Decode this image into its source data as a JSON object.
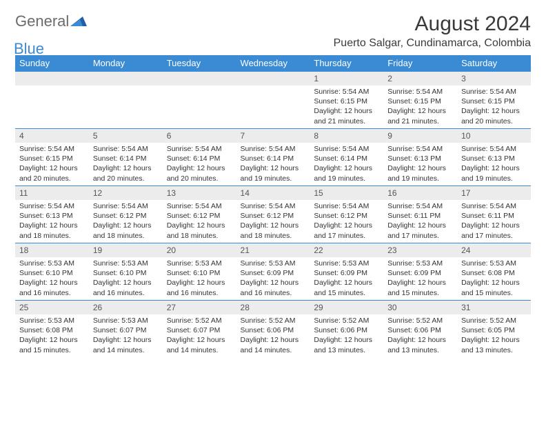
{
  "brand": {
    "text1": "General",
    "text2": "Blue"
  },
  "title": "August 2024",
  "location": "Puerto Salgar, Cundinamarca, Colombia",
  "colors": {
    "header_bg": "#3b8bd4",
    "header_fg": "#ffffff",
    "daynum_bg": "#ececec",
    "rule": "#3b8bd4",
    "text": "#333333"
  },
  "dayNames": [
    "Sunday",
    "Monday",
    "Tuesday",
    "Wednesday",
    "Thursday",
    "Friday",
    "Saturday"
  ],
  "weeks": [
    [
      null,
      null,
      null,
      null,
      {
        "n": "1",
        "sr": "5:54 AM",
        "ss": "6:15 PM",
        "dl": "12 hours and 21 minutes."
      },
      {
        "n": "2",
        "sr": "5:54 AM",
        "ss": "6:15 PM",
        "dl": "12 hours and 21 minutes."
      },
      {
        "n": "3",
        "sr": "5:54 AM",
        "ss": "6:15 PM",
        "dl": "12 hours and 20 minutes."
      }
    ],
    [
      {
        "n": "4",
        "sr": "5:54 AM",
        "ss": "6:15 PM",
        "dl": "12 hours and 20 minutes."
      },
      {
        "n": "5",
        "sr": "5:54 AM",
        "ss": "6:14 PM",
        "dl": "12 hours and 20 minutes."
      },
      {
        "n": "6",
        "sr": "5:54 AM",
        "ss": "6:14 PM",
        "dl": "12 hours and 20 minutes."
      },
      {
        "n": "7",
        "sr": "5:54 AM",
        "ss": "6:14 PM",
        "dl": "12 hours and 19 minutes."
      },
      {
        "n": "8",
        "sr": "5:54 AM",
        "ss": "6:14 PM",
        "dl": "12 hours and 19 minutes."
      },
      {
        "n": "9",
        "sr": "5:54 AM",
        "ss": "6:13 PM",
        "dl": "12 hours and 19 minutes."
      },
      {
        "n": "10",
        "sr": "5:54 AM",
        "ss": "6:13 PM",
        "dl": "12 hours and 19 minutes."
      }
    ],
    [
      {
        "n": "11",
        "sr": "5:54 AM",
        "ss": "6:13 PM",
        "dl": "12 hours and 18 minutes."
      },
      {
        "n": "12",
        "sr": "5:54 AM",
        "ss": "6:12 PM",
        "dl": "12 hours and 18 minutes."
      },
      {
        "n": "13",
        "sr": "5:54 AM",
        "ss": "6:12 PM",
        "dl": "12 hours and 18 minutes."
      },
      {
        "n": "14",
        "sr": "5:54 AM",
        "ss": "6:12 PM",
        "dl": "12 hours and 18 minutes."
      },
      {
        "n": "15",
        "sr": "5:54 AM",
        "ss": "6:12 PM",
        "dl": "12 hours and 17 minutes."
      },
      {
        "n": "16",
        "sr": "5:54 AM",
        "ss": "6:11 PM",
        "dl": "12 hours and 17 minutes."
      },
      {
        "n": "17",
        "sr": "5:54 AM",
        "ss": "6:11 PM",
        "dl": "12 hours and 17 minutes."
      }
    ],
    [
      {
        "n": "18",
        "sr": "5:53 AM",
        "ss": "6:10 PM",
        "dl": "12 hours and 16 minutes."
      },
      {
        "n": "19",
        "sr": "5:53 AM",
        "ss": "6:10 PM",
        "dl": "12 hours and 16 minutes."
      },
      {
        "n": "20",
        "sr": "5:53 AM",
        "ss": "6:10 PM",
        "dl": "12 hours and 16 minutes."
      },
      {
        "n": "21",
        "sr": "5:53 AM",
        "ss": "6:09 PM",
        "dl": "12 hours and 16 minutes."
      },
      {
        "n": "22",
        "sr": "5:53 AM",
        "ss": "6:09 PM",
        "dl": "12 hours and 15 minutes."
      },
      {
        "n": "23",
        "sr": "5:53 AM",
        "ss": "6:09 PM",
        "dl": "12 hours and 15 minutes."
      },
      {
        "n": "24",
        "sr": "5:53 AM",
        "ss": "6:08 PM",
        "dl": "12 hours and 15 minutes."
      }
    ],
    [
      {
        "n": "25",
        "sr": "5:53 AM",
        "ss": "6:08 PM",
        "dl": "12 hours and 15 minutes."
      },
      {
        "n": "26",
        "sr": "5:53 AM",
        "ss": "6:07 PM",
        "dl": "12 hours and 14 minutes."
      },
      {
        "n": "27",
        "sr": "5:52 AM",
        "ss": "6:07 PM",
        "dl": "12 hours and 14 minutes."
      },
      {
        "n": "28",
        "sr": "5:52 AM",
        "ss": "6:06 PM",
        "dl": "12 hours and 14 minutes."
      },
      {
        "n": "29",
        "sr": "5:52 AM",
        "ss": "6:06 PM",
        "dl": "12 hours and 13 minutes."
      },
      {
        "n": "30",
        "sr": "5:52 AM",
        "ss": "6:06 PM",
        "dl": "12 hours and 13 minutes."
      },
      {
        "n": "31",
        "sr": "5:52 AM",
        "ss": "6:05 PM",
        "dl": "12 hours and 13 minutes."
      }
    ]
  ],
  "labels": {
    "sunrise": "Sunrise: ",
    "sunset": "Sunset: ",
    "daylight": "Daylight: "
  }
}
